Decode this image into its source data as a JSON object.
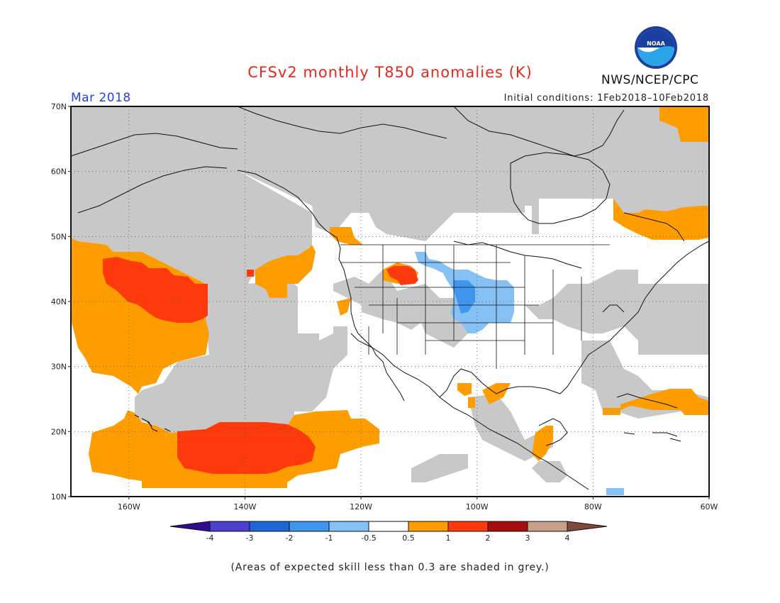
{
  "header": {
    "title": "CFSv2 monthly T850 anomalies (K)",
    "agency": "NWS/NCEP/CPC",
    "logo_text": "NOAA",
    "month": "Mar 2018",
    "initial_conditions": "Initial conditions: 1Feb2018–10Feb2018"
  },
  "map": {
    "lon_range": [
      -170,
      -60
    ],
    "lat_range": [
      10,
      70
    ],
    "lat_labels": [
      "10N",
      "20N",
      "30N",
      "40N",
      "50N",
      "60N",
      "70N"
    ],
    "lat_values": [
      10,
      20,
      30,
      40,
      50,
      60,
      70
    ],
    "lon_labels": [
      "160W",
      "140W",
      "120W",
      "100W",
      "80W",
      "60W"
    ],
    "lon_values": [
      -160,
      -140,
      -120,
      -100,
      -80,
      -60
    ],
    "grey_meaning": "skill < 0.3"
  },
  "legend": {
    "colors": [
      "#2e0d8f",
      "#4c3fd0",
      "#1f66d9",
      "#3f96ec",
      "#86c1f5",
      "#ffffff",
      "#fe9d00",
      "#fe3a0c",
      "#a80d0d",
      "#c9a08a",
      "#7d4a3c"
    ],
    "tick_labels": [
      "-4",
      "-3",
      "-2",
      "-1",
      "-0.5",
      "0.5",
      "1",
      "2",
      "3",
      "4"
    ]
  },
  "colors": {
    "grey_mask": "#c8c8c8",
    "orange": "#fe9d00",
    "red": "#fe3a0c",
    "light_blue": "#86c1f5",
    "blue": "#3f96ec"
  },
  "footnote": "(Areas of expected skill less than 0.3 are shaded in grey.)"
}
